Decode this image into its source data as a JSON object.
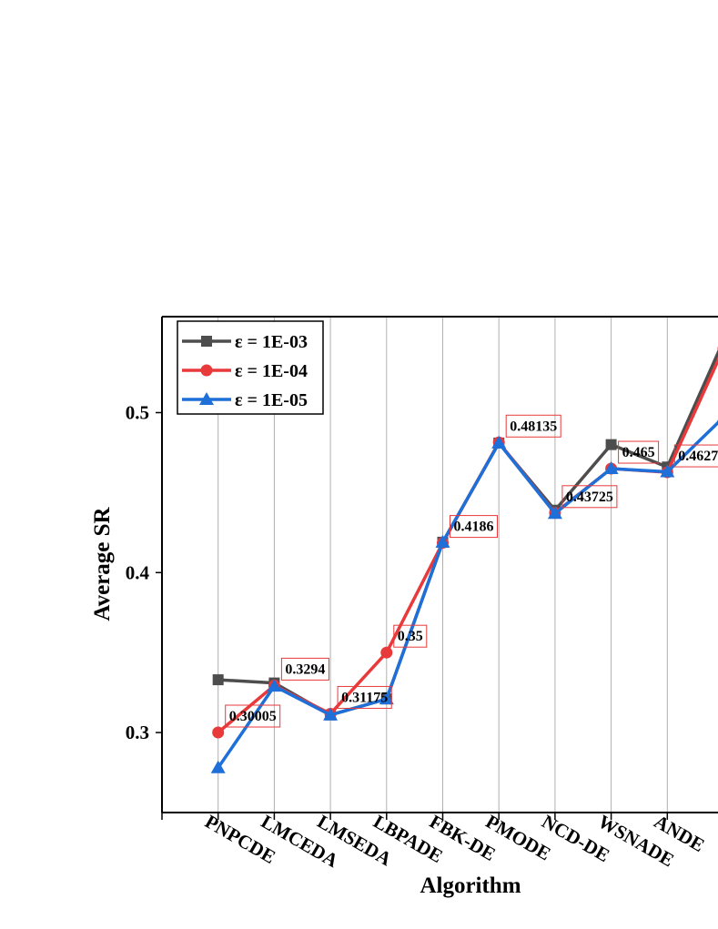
{
  "chart_data": {
    "type": "line",
    "x_label": "Algorithm",
    "y_label": "Average SR",
    "categories": [
      "PNPCDE",
      "LMCEDA",
      "LMSEDA",
      "LBPADE",
      "FBK-DE",
      "PMODE",
      "NCD-DE",
      "WSNADE",
      "ANDE",
      null
    ],
    "series": [
      {
        "name": "ε = 1E-03",
        "color": "#4d4d4d",
        "marker": "square",
        "values": [
          0.333,
          0.331,
          0.311,
          0.321,
          0.419,
          0.481,
          0.439,
          0.48,
          0.466,
          0.545
        ]
      },
      {
        "name": "ε = 1E-04",
        "color": "#e8393b",
        "marker": "circle",
        "values": [
          0.30005,
          0.3294,
          0.31175,
          0.35,
          0.4186,
          0.48135,
          0.43725,
          0.465,
          0.4627,
          0.54
        ],
        "show_labels": true
      },
      {
        "name": "ε = 1E-05",
        "color": "#1f6fd8",
        "marker": "triangle",
        "values": [
          0.278,
          0.329,
          0.311,
          0.321,
          0.419,
          0.481,
          0.437,
          0.465,
          0.463,
          0.497
        ]
      }
    ],
    "ylim": [
      0.25,
      0.56
    ],
    "yticks": [
      0.3,
      0.4,
      0.5
    ],
    "grid": true,
    "legend": "upper left"
  }
}
